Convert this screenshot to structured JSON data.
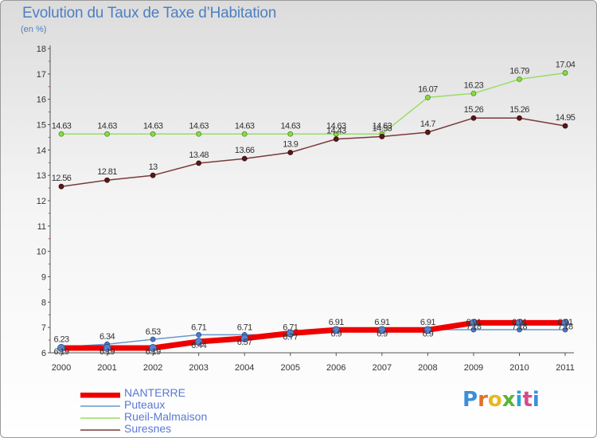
{
  "title": "Evolution du Taux de Taxe d’Habitation",
  "subtitle": "(en %)",
  "brand": {
    "text": "Proxiti",
    "letter_colors": [
      "#3b8fd8",
      "#e0712a",
      "#e8b820",
      "#5ab43a",
      "#2e9fd6",
      "#d84a8a",
      "#3b8fd8"
    ]
  },
  "chart_data": {
    "type": "line",
    "title": "Evolution du Taux de Taxe d’Habitation",
    "subtitle": "(en %)",
    "xlabel": "",
    "ylabel": "",
    "x": [
      "2000",
      "2001",
      "2002",
      "2003",
      "2004",
      "2005",
      "2006",
      "2007",
      "2008",
      "2009",
      "2010",
      "2011"
    ],
    "ylim": [
      6,
      18
    ],
    "yticks": [
      6,
      7,
      8,
      9,
      10,
      11,
      12,
      13,
      14,
      15,
      16,
      17,
      18
    ],
    "grid": false,
    "legend_position": "bottom-left",
    "series": [
      {
        "name": "NANTERRE",
        "color": "#ee0000",
        "values": [
          6.19,
          6.19,
          6.19,
          6.44,
          6.57,
          6.77,
          6.9,
          6.9,
          6.9,
          7.18,
          7.18,
          7.18
        ],
        "labels": [
          "6.19",
          "6.19",
          "6.19",
          "6.44",
          "6.57",
          "6.77",
          "6.9",
          "6.9",
          "6.9",
          "7.18",
          "7.18",
          "7.18"
        ]
      },
      {
        "name": "Puteaux",
        "color": "#6699cc",
        "values": [
          6.23,
          6.34,
          6.53,
          6.71,
          6.71,
          6.71,
          6.91,
          6.91,
          6.91,
          6.91,
          6.91,
          6.91
        ],
        "labels": [
          "6.23",
          "6.34",
          "6.53",
          "6.71",
          "6.71",
          "6.71",
          "6.91",
          "6.91",
          "6.91",
          "6.91",
          "6.91",
          "6.91"
        ]
      },
      {
        "name": "Rueil-Malmaison",
        "color": "#99dd66",
        "values": [
          14.63,
          14.63,
          14.63,
          14.63,
          14.63,
          14.63,
          14.63,
          14.63,
          16.07,
          16.23,
          16.79,
          17.04
        ],
        "labels": [
          "14.63",
          "14.63",
          "14.63",
          "14.63",
          "14.63",
          "14.63",
          "14.63",
          "14.63",
          "16.07",
          "16.23",
          "16.79",
          "17.04"
        ]
      },
      {
        "name": "Suresnes",
        "color": "#7a3a3a",
        "values": [
          12.56,
          12.81,
          13,
          13.48,
          13.66,
          13.9,
          14.43,
          14.53,
          14.7,
          15.26,
          15.26,
          14.95
        ],
        "labels": [
          "12.56",
          "12.81",
          "13",
          "13.48",
          "13.66",
          "13.9",
          "14.43",
          "14.53",
          "14.7",
          "15.26",
          "15.26",
          "14.95"
        ]
      }
    ]
  }
}
